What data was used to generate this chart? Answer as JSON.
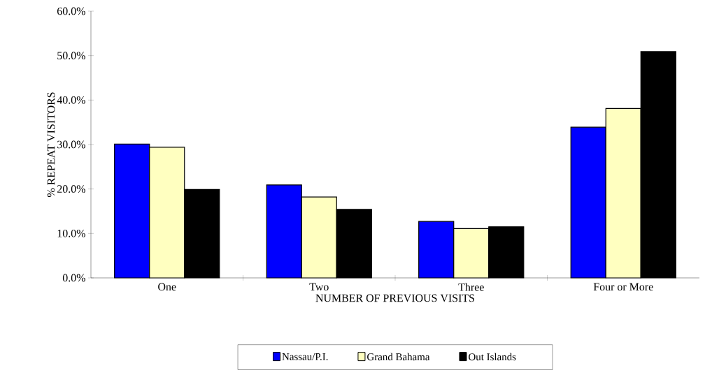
{
  "chart_data": {
    "type": "bar",
    "xlabel": "NUMBER OF PREVIOUS VISITS",
    "ylabel": "% REPEAT VISITORS",
    "categories": [
      "One",
      "Two",
      "Three",
      "Four or More"
    ],
    "series": [
      {
        "name": "Nassau/P.I.",
        "color": "#0000ff",
        "values": [
          30.1,
          20.9,
          12.7,
          33.9
        ]
      },
      {
        "name": "Grand Bahama",
        "color": "#ffffc0",
        "values": [
          29.4,
          18.2,
          11.1,
          38.1
        ]
      },
      {
        "name": "Out Islands",
        "color": "#000000",
        "values": [
          19.9,
          15.4,
          11.5,
          50.9
        ]
      }
    ],
    "ylim": [
      0,
      60
    ],
    "yticks": [
      {
        "value": 0,
        "label": "0.0%"
      },
      {
        "value": 10,
        "label": "10.0%"
      },
      {
        "value": 20,
        "label": "20.0%"
      },
      {
        "value": 30,
        "label": "30.0%"
      },
      {
        "value": 40,
        "label": "40.0%"
      },
      {
        "value": 50,
        "label": "50.0%"
      },
      {
        "value": 60,
        "label": "60.0%"
      }
    ],
    "grid": false,
    "legend": "bottom"
  }
}
